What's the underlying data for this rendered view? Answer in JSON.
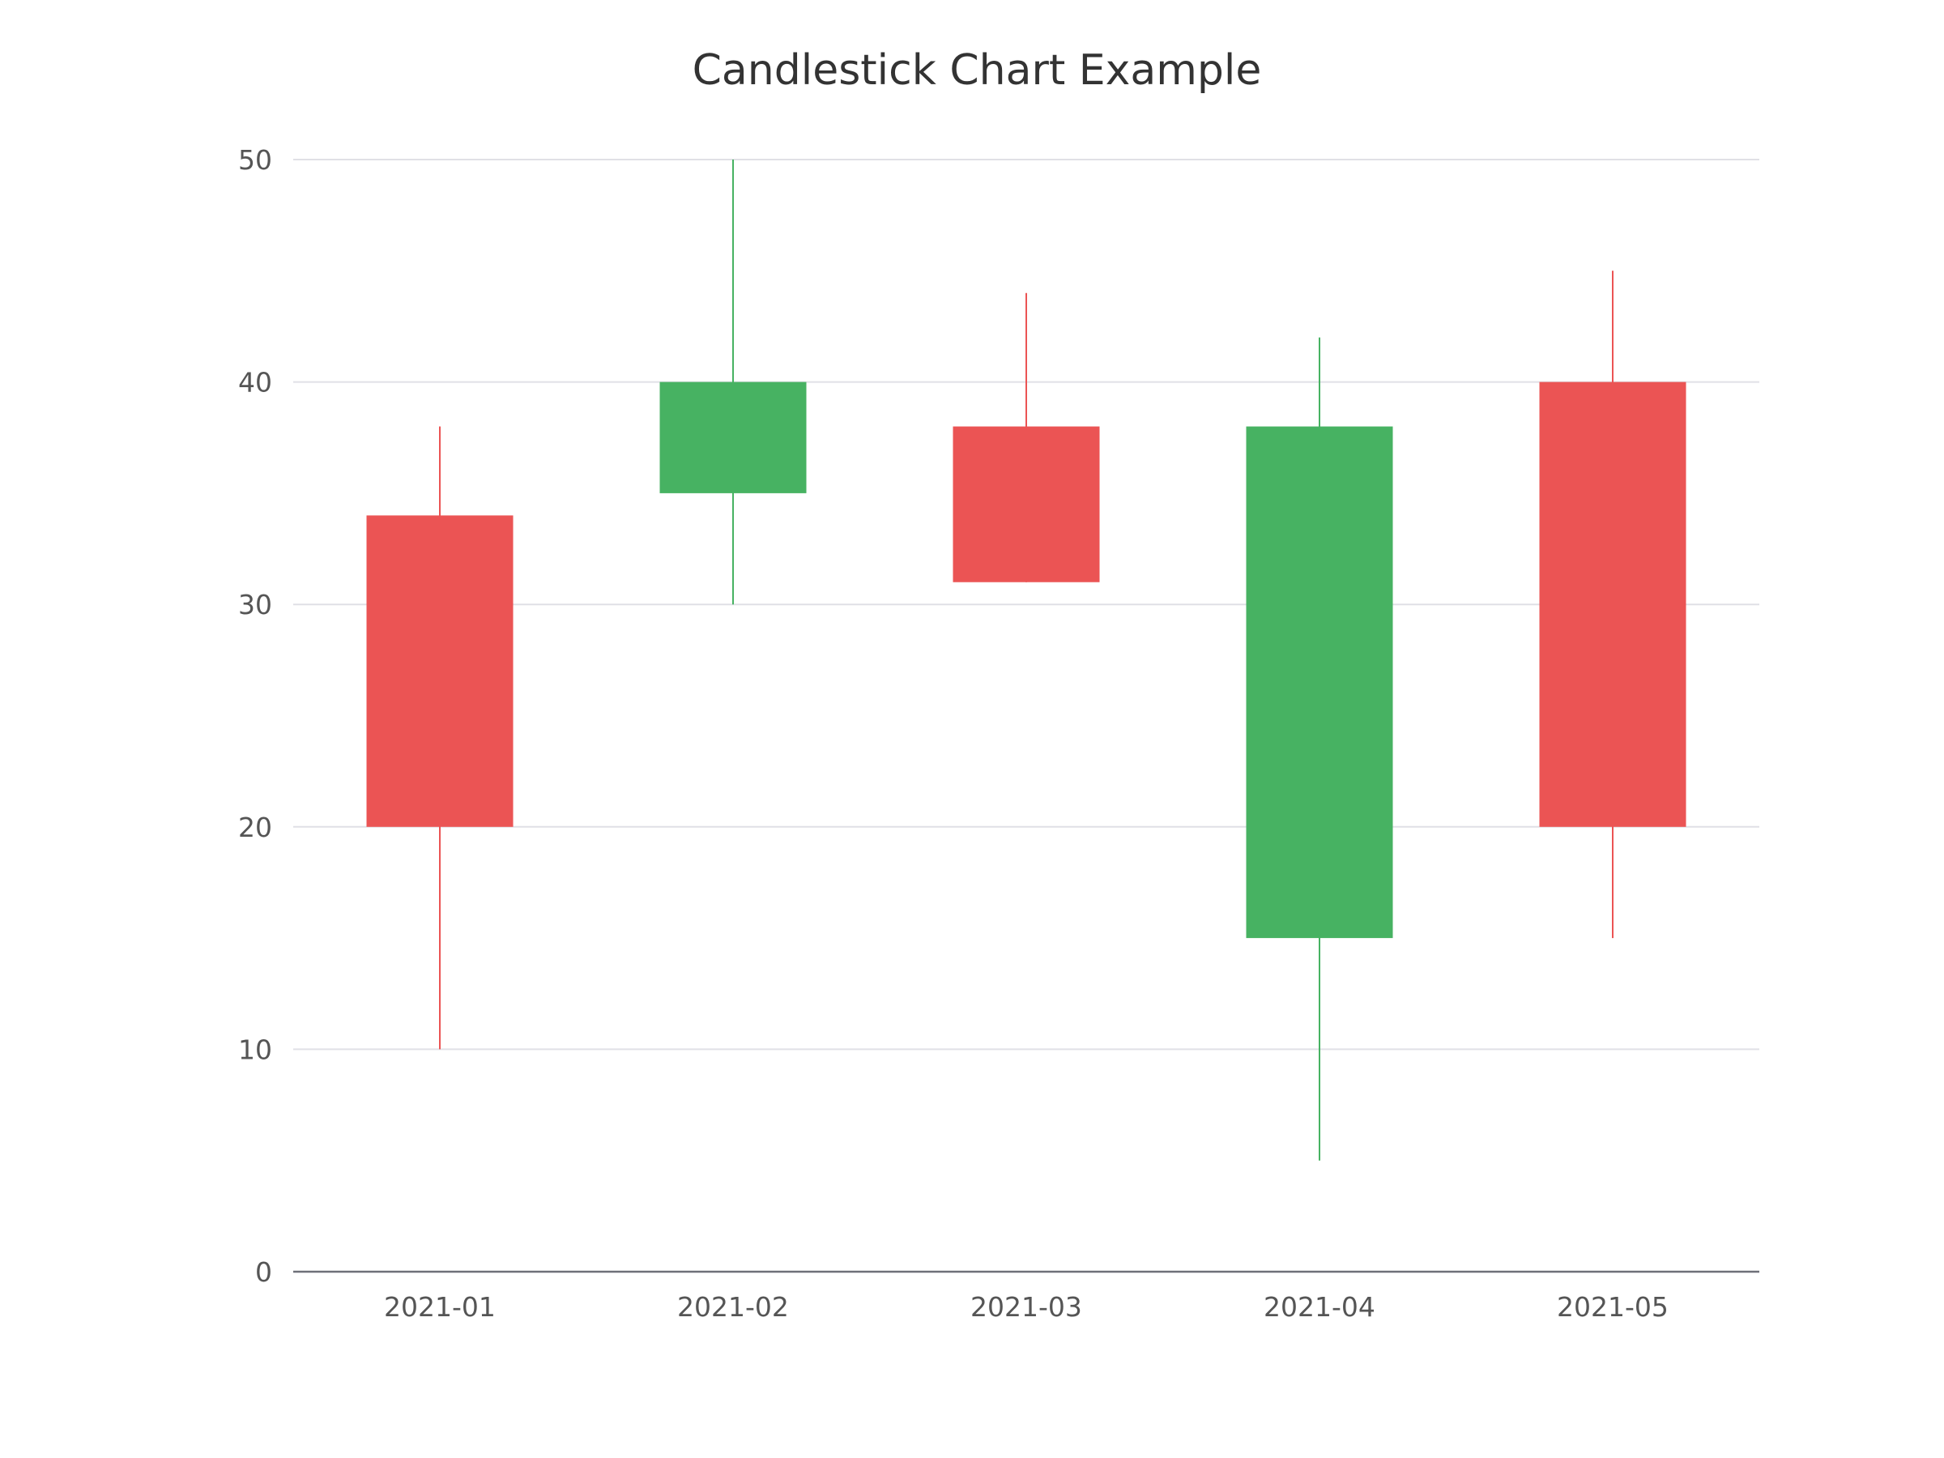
{
  "chart_data": {
    "type": "candlestick",
    "title": "Candlestick Chart Example",
    "xlabel": "",
    "ylabel": "",
    "categories": [
      "2021-01",
      "2021-02",
      "2021-03",
      "2021-04",
      "2021-05"
    ],
    "series": [
      {
        "values": [
          {
            "open": 34,
            "close": 20,
            "low": 10,
            "high": 38
          },
          {
            "open": 35,
            "close": 40,
            "low": 30,
            "high": 50
          },
          {
            "open": 38,
            "close": 31,
            "low": 31,
            "high": 44
          },
          {
            "open": 15,
            "close": 38,
            "low": 5,
            "high": 42
          },
          {
            "open": 40,
            "close": 20,
            "low": 15,
            "high": 45
          }
        ]
      }
    ],
    "ylim": [
      0,
      50
    ],
    "yticks": [
      "0",
      "10",
      "20",
      "30",
      "40",
      "50"
    ],
    "grid": true,
    "colors": {
      "up": "#47b262",
      "down": "#eb5454",
      "grid": "#e0e0e6",
      "axis": "#6e7079",
      "title": "#333333",
      "tick_label": "#555555"
    }
  }
}
